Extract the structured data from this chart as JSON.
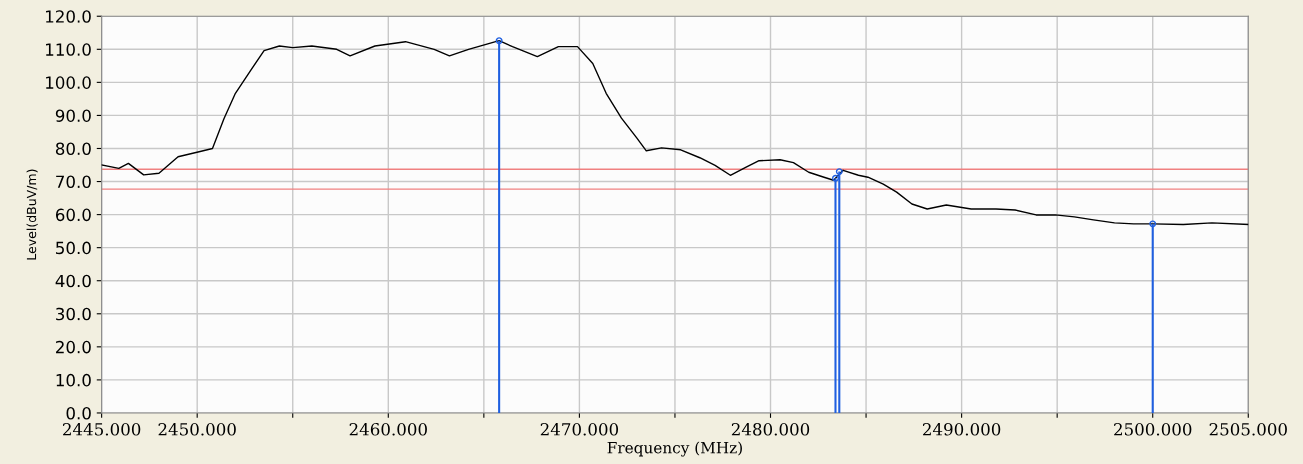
{
  "chart_data": {
    "type": "line",
    "xlabel": "Frequency (MHz)",
    "ylabel": "Level(dBuV/m)",
    "xlim": [
      2445,
      2505
    ],
    "ylim": [
      0,
      120
    ],
    "xticks": [
      {
        "value": 2445,
        "label": "2445.000"
      },
      {
        "value": 2450,
        "label": "2450.000"
      },
      {
        "value": 2455,
        "label": null
      },
      {
        "value": 2460,
        "label": "2460.000"
      },
      {
        "value": 2465,
        "label": null
      },
      {
        "value": 2470,
        "label": "2470.000"
      },
      {
        "value": 2475,
        "label": null
      },
      {
        "value": 2480,
        "label": "2480.000"
      },
      {
        "value": 2485,
        "label": null
      },
      {
        "value": 2490,
        "label": "2490.000"
      },
      {
        "value": 2495,
        "label": null
      },
      {
        "value": 2500,
        "label": "2500.000"
      },
      {
        "value": 2505,
        "label": "2505.000"
      }
    ],
    "yticks": [
      {
        "value": 0,
        "label": "0.0"
      },
      {
        "value": 10,
        "label": "10.0"
      },
      {
        "value": 20,
        "label": "20.0"
      },
      {
        "value": 30,
        "label": "30.0"
      },
      {
        "value": 40,
        "label": "40.0"
      },
      {
        "value": 50,
        "label": "50.0"
      },
      {
        "value": 60,
        "label": "60.0"
      },
      {
        "value": 70,
        "label": "70.0"
      },
      {
        "value": 80,
        "label": "80.0"
      },
      {
        "value": 90,
        "label": "90.0"
      },
      {
        "value": 100,
        "label": "100.0"
      },
      {
        "value": 110,
        "label": "110.0"
      },
      {
        "value": 120,
        "label": "120.0"
      }
    ],
    "grid": true,
    "series": [
      {
        "color": "#000000",
        "x": [
          2445,
          2445.9,
          2446.4,
          2447.2,
          2448.0,
          2448.5,
          2449.0,
          2450.1,
          2450.8,
          2451.4,
          2452.0,
          2452.8,
          2453.5,
          2454.3,
          2455,
          2456,
          2457.3,
          2458.0,
          2459.3,
          2460.9,
          2462.4,
          2463.2,
          2464.2,
          2465.8,
          2466.5,
          2467.8,
          2468.9,
          2469.9,
          2470.7,
          2471.4,
          2472.2,
          2473.0,
          2473.5,
          2474.3,
          2475.3,
          2476.3,
          2477.1,
          2477.9,
          2478.7,
          2479.4,
          2480.5,
          2481.2,
          2482.0,
          2482.8,
          2483.3,
          2483.6,
          2483.8,
          2484.6,
          2485.1,
          2485.9,
          2486.6,
          2487.4,
          2488.2,
          2489.2,
          2490.5,
          2491.8,
          2492.8,
          2493.9,
          2494.9,
          2495.9,
          2496.9,
          2498.0,
          2499.0,
          2500.0,
          2501.6,
          2503.1,
          2505
        ],
        "values": [
          75,
          74,
          75.5,
          72,
          72.5,
          75,
          77.5,
          79,
          80,
          89,
          96.7,
          103.6,
          109.6,
          111,
          110.5,
          111,
          110,
          108,
          111,
          112.3,
          110,
          108,
          110,
          112.6,
          110.8,
          107.8,
          110.8,
          110.8,
          105.7,
          96.7,
          89.2,
          83.2,
          79.3,
          80.2,
          79.6,
          77.2,
          74.9,
          71.9,
          74.3,
          76.3,
          76.6,
          75.7,
          72.8,
          71.3,
          70.4,
          72.2,
          73.4,
          71.9,
          71.3,
          69.2,
          66.8,
          63.2,
          61.7,
          62.9,
          61.7,
          61.7,
          61.4,
          59.9,
          59.9,
          59.3,
          58.4,
          57.5,
          57.2,
          57.2,
          57,
          57.5,
          57
        ]
      },
      {
        "type": "lollipop",
        "color": "#1f5fe0",
        "marker": "circle",
        "x": [
          2465.8,
          2483.4,
          2483.6,
          2500.0
        ],
        "values": [
          112.6,
          71,
          73,
          57.2
        ]
      }
    ],
    "ref_lines": [
      {
        "axis": "y",
        "value": 73.7,
        "color": "#f08080"
      },
      {
        "axis": "y",
        "value": 67.7,
        "color": "#f08080"
      }
    ]
  }
}
